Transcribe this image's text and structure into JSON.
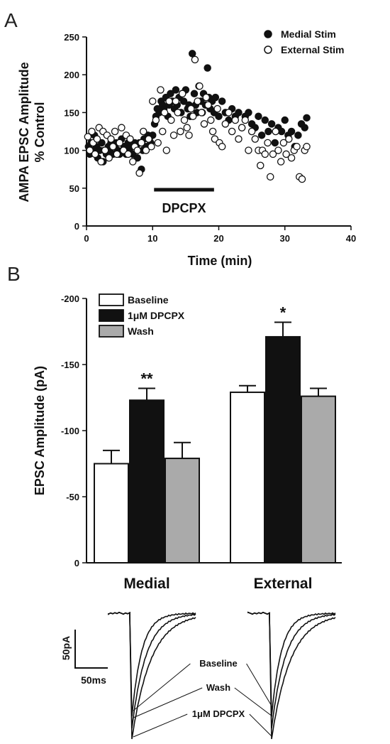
{
  "chart_data": [
    {
      "panel": "A",
      "type": "scatter",
      "xlabel": "Time (min)",
      "ylabel_line1": "AMPA EPSC Amplitude",
      "ylabel_line2": "% Control",
      "xlim": [
        0,
        40
      ],
      "ylim": [
        0,
        250
      ],
      "xticks": [
        "0",
        "10",
        "20",
        "30",
        "40"
      ],
      "yticks": [
        "0",
        "50",
        "100",
        "150",
        "200",
        "250"
      ],
      "legend_position": "top-right",
      "annotation": {
        "label": "DPCPX",
        "x_start": 10,
        "x_end": 19.5
      },
      "series": [
        {
          "name": "Medial Stim",
          "marker": "filled-circle",
          "points": [
            [
              0.3,
              105
            ],
            [
              0.5,
              95
            ],
            [
              0.7,
              110
            ],
            [
              1.0,
              100
            ],
            [
              1.2,
              120
            ],
            [
              1.5,
              105
            ],
            [
              1.7,
              90
            ],
            [
              2.0,
              100
            ],
            [
              2.3,
              110
            ],
            [
              2.5,
              85
            ],
            [
              2.7,
              100
            ],
            [
              3.0,
              95
            ],
            [
              3.3,
              105
            ],
            [
              3.5,
              100
            ],
            [
              3.7,
              110
            ],
            [
              4.0,
              95
            ],
            [
              4.3,
              105
            ],
            [
              4.5,
              110
            ],
            [
              4.7,
              100
            ],
            [
              5.0,
              95
            ],
            [
              5.3,
              115
            ],
            [
              5.5,
              100
            ],
            [
              5.7,
              105
            ],
            [
              6.0,
              95
            ],
            [
              6.3,
              110
            ],
            [
              6.5,
              100
            ],
            [
              6.7,
              105
            ],
            [
              7.0,
              95
            ],
            [
              7.3,
              110
            ],
            [
              7.5,
              105
            ],
            [
              7.7,
              90
            ],
            [
              8.0,
              110
            ],
            [
              8.3,
              75
            ],
            [
              8.5,
              100
            ],
            [
              8.7,
              115
            ],
            [
              9.0,
              105
            ],
            [
              9.3,
              120
            ],
            [
              9.5,
              115
            ],
            [
              9.7,
              110
            ],
            [
              10.0,
              120
            ],
            [
              10.3,
              135
            ],
            [
              10.5,
              145
            ],
            [
              10.7,
              155
            ],
            [
              11.0,
              150
            ],
            [
              11.3,
              165
            ],
            [
              11.5,
              160
            ],
            [
              11.7,
              155
            ],
            [
              12.0,
              170
            ],
            [
              12.3,
              145
            ],
            [
              12.5,
              160
            ],
            [
              12.7,
              175
            ],
            [
              13.0,
              165
            ],
            [
              13.3,
              155
            ],
            [
              13.5,
              180
            ],
            [
              13.7,
              160
            ],
            [
              14.0,
              170
            ],
            [
              14.3,
              150
            ],
            [
              14.5,
              175
            ],
            [
              14.7,
              165
            ],
            [
              15.0,
              180
            ],
            [
              15.3,
              155
            ],
            [
              15.5,
              160
            ],
            [
              15.7,
              145
            ],
            [
              16.0,
              228
            ],
            [
              16.3,
              175
            ],
            [
              16.5,
              160
            ],
            [
              16.7,
              150
            ],
            [
              17.0,
              185
            ],
            [
              17.3,
              165
            ],
            [
              17.5,
              150
            ],
            [
              17.7,
              175
            ],
            [
              18.0,
              160
            ],
            [
              18.3,
              209
            ],
            [
              18.5,
              170
            ],
            [
              18.7,
              155
            ],
            [
              19.0,
              165
            ],
            [
              19.3,
              150
            ],
            [
              19.5,
              170
            ],
            [
              20.0,
              145
            ],
            [
              20.5,
              165
            ],
            [
              21.0,
              150
            ],
            [
              21.5,
              140
            ],
            [
              22.0,
              155
            ],
            [
              22.5,
              145
            ],
            [
              23.0,
              150
            ],
            [
              23.5,
              130
            ],
            [
              24.0,
              145
            ],
            [
              24.5,
              150
            ],
            [
              25.0,
              135
            ],
            [
              25.5,
              130
            ],
            [
              26.0,
              145
            ],
            [
              26.5,
              120
            ],
            [
              27.0,
              140
            ],
            [
              27.5,
              125
            ],
            [
              28.0,
              135
            ],
            [
              28.5,
              110
            ],
            [
              29.0,
              130
            ],
            [
              29.5,
              125
            ],
            [
              30.0,
              140
            ],
            [
              30.5,
              120
            ],
            [
              31.0,
              125
            ],
            [
              31.5,
              105
            ],
            [
              32.0,
              120
            ],
            [
              32.5,
              135
            ],
            [
              33.0,
              130
            ],
            [
              33.3,
              143
            ]
          ]
        },
        {
          "name": "External Stim",
          "marker": "open-circle",
          "points": [
            [
              0.2,
              118
            ],
            [
              0.5,
              100
            ],
            [
              0.8,
              125
            ],
            [
              1.0,
              110
            ],
            [
              1.3,
              95
            ],
            [
              1.6,
              115
            ],
            [
              1.9,
              130
            ],
            [
              2.2,
              85
            ],
            [
              2.5,
              125
            ],
            [
              2.8,
              100
            ],
            [
              3.1,
              120
            ],
            [
              3.4,
              90
            ],
            [
              3.7,
              115
            ],
            [
              4.0,
              105
            ],
            [
              4.3,
              125
            ],
            [
              4.6,
              95
            ],
            [
              5.0,
              110
            ],
            [
              5.3,
              130
            ],
            [
              5.6,
              100
            ],
            [
              6.0,
              120
            ],
            [
              6.3,
              95
            ],
            [
              6.6,
              115
            ],
            [
              7.0,
              85
            ],
            [
              7.3,
              105
            ],
            [
              7.7,
              100
            ],
            [
              8.0,
              70
            ],
            [
              8.3,
              110
            ],
            [
              8.6,
              125
            ],
            [
              9.0,
              100
            ],
            [
              9.4,
              115
            ],
            [
              9.8,
              105
            ],
            [
              10.0,
              165
            ],
            [
              10.5,
              140
            ],
            [
              10.8,
              110
            ],
            [
              11.2,
              180
            ],
            [
              11.5,
              125
            ],
            [
              11.8,
              150
            ],
            [
              12.1,
              100
            ],
            [
              12.5,
              165
            ],
            [
              12.8,
              140
            ],
            [
              13.2,
              120
            ],
            [
              13.5,
              165
            ],
            [
              13.8,
              150
            ],
            [
              14.2,
              125
            ],
            [
              14.5,
              175
            ],
            [
              14.8,
              140
            ],
            [
              15.2,
              130
            ],
            [
              15.5,
              120
            ],
            [
              15.8,
              155
            ],
            [
              16.1,
              145
            ],
            [
              16.4,
              220
            ],
            [
              16.8,
              165
            ],
            [
              17.1,
              185
            ],
            [
              17.4,
              150
            ],
            [
              17.8,
              135
            ],
            [
              18.1,
              170
            ],
            [
              18.4,
              160
            ],
            [
              18.8,
              140
            ],
            [
              19.1,
              125
            ],
            [
              19.4,
              115
            ],
            [
              19.8,
              155
            ],
            [
              20.1,
              110
            ],
            [
              20.5,
              105
            ],
            [
              21.0,
              135
            ],
            [
              21.5,
              150
            ],
            [
              22.0,
              125
            ],
            [
              22.5,
              140
            ],
            [
              23.0,
              115
            ],
            [
              23.5,
              130
            ],
            [
              24.0,
              140
            ],
            [
              24.5,
              100
            ],
            [
              25.0,
              125
            ],
            [
              25.5,
              115
            ],
            [
              26.0,
              100
            ],
            [
              26.3,
              80
            ],
            [
              26.6,
              100
            ],
            [
              27.0,
              95
            ],
            [
              27.4,
              110
            ],
            [
              27.8,
              65
            ],
            [
              28.2,
              95
            ],
            [
              28.6,
              125
            ],
            [
              29.0,
              100
            ],
            [
              29.4,
              85
            ],
            [
              29.8,
              110
            ],
            [
              30.2,
              95
            ],
            [
              30.6,
              115
            ],
            [
              31.0,
              90
            ],
            [
              31.4,
              100
            ],
            [
              31.8,
              105
            ],
            [
              32.2,
              65
            ],
            [
              32.6,
              62
            ],
            [
              33.0,
              100
            ],
            [
              33.3,
              105
            ]
          ]
        }
      ]
    },
    {
      "panel": "B",
      "type": "bar",
      "ylabel": "EPSC Amplitude (pA)",
      "ylim": [
        0,
        -200
      ],
      "yticks": [
        "0",
        "-50",
        "-100",
        "-150",
        "-200"
      ],
      "categories": [
        "Medial",
        "External"
      ],
      "legend_position": "top-left",
      "series": [
        {
          "name": "Baseline",
          "color": "#ffffff",
          "values": [
            -75,
            -129
          ],
          "errors": [
            10,
            5
          ]
        },
        {
          "name": "1μM DPCPX",
          "color": "#111111",
          "values": [
            -123,
            -171
          ],
          "errors": [
            9,
            11
          ]
        },
        {
          "name": "Wash",
          "color": "#aaaaaa",
          "values": [
            -79,
            -126
          ],
          "errors": [
            12,
            6
          ]
        }
      ],
      "significance": [
        "**",
        "*"
      ]
    },
    {
      "panel": "traces",
      "type": "line",
      "scale_bar": {
        "y_label": "50pA",
        "x_label": "50ms"
      },
      "trace_labels": [
        "Baseline",
        "Wash",
        "1μM DPCPX"
      ]
    }
  ],
  "panel_letters": {
    "a": "A",
    "b": "B"
  }
}
